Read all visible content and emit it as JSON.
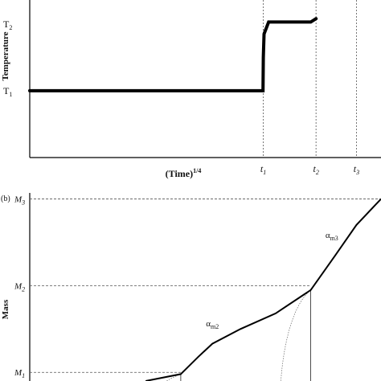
{
  "chart_data": [
    {
      "type": "line",
      "panel_label": "",
      "xlabel": "(Time)",
      "xlabel_sup": "1/4",
      "ylabel": "Temperature",
      "y_ticks": [
        {
          "base": "T",
          "sub": "1",
          "value": 1
        },
        {
          "base": "T",
          "sub": "2",
          "value": 2
        }
      ],
      "x_ticks": [
        {
          "base": "t",
          "sub": "1",
          "value": 0.665
        },
        {
          "base": "t",
          "sub": "2",
          "value": 0.815
        },
        {
          "base": "t",
          "sub": "3",
          "value": 0.93
        }
      ],
      "xlim": [
        0,
        1
      ],
      "ylim": [
        0,
        2.42
      ],
      "series": [
        {
          "x": [
            0,
            0.648,
            0.664,
            0.665,
            0.667,
            0.68,
            0.8,
            0.815
          ],
          "y": [
            1.0,
            1.0,
            1.0,
            1.5,
            1.85,
            2.03,
            2.03,
            2.08
          ]
        }
      ],
      "vlines": [
        0.665,
        0.815,
        0.93
      ],
      "colors": {
        "line": "#000000",
        "guide": "#555555"
      }
    },
    {
      "type": "line",
      "panel_label": "(b)",
      "xlabel": "",
      "ylabel": "Mass",
      "y_ticks": [
        {
          "base": "M",
          "sub": "1",
          "value": 1
        },
        {
          "base": "M",
          "sub": "2",
          "value": 2
        },
        {
          "base": "M",
          "sub": "3",
          "value": 3
        }
      ],
      "annotations": [
        {
          "base": "α",
          "sub": "m2",
          "x": 0.52,
          "y": 1.53
        },
        {
          "base": "α",
          "sub": "m3",
          "x": 0.86,
          "y": 2.55
        }
      ],
      "xlim": [
        0,
        1
      ],
      "ylim": [
        0.9,
        3.07
      ],
      "series": [
        {
          "x": [
            0.33,
            0.43,
            0.48,
            0.52,
            0.6,
            0.7,
            0.8,
            0.87,
            0.93,
            1.0
          ],
          "y": [
            0.9,
            0.98,
            1.18,
            1.33,
            1.5,
            1.68,
            1.95,
            2.35,
            2.7,
            3.0
          ]
        }
      ],
      "vlines": [
        0.43,
        0.8
      ],
      "colors": {
        "line": "#000000",
        "guide": "#555555"
      }
    }
  ]
}
